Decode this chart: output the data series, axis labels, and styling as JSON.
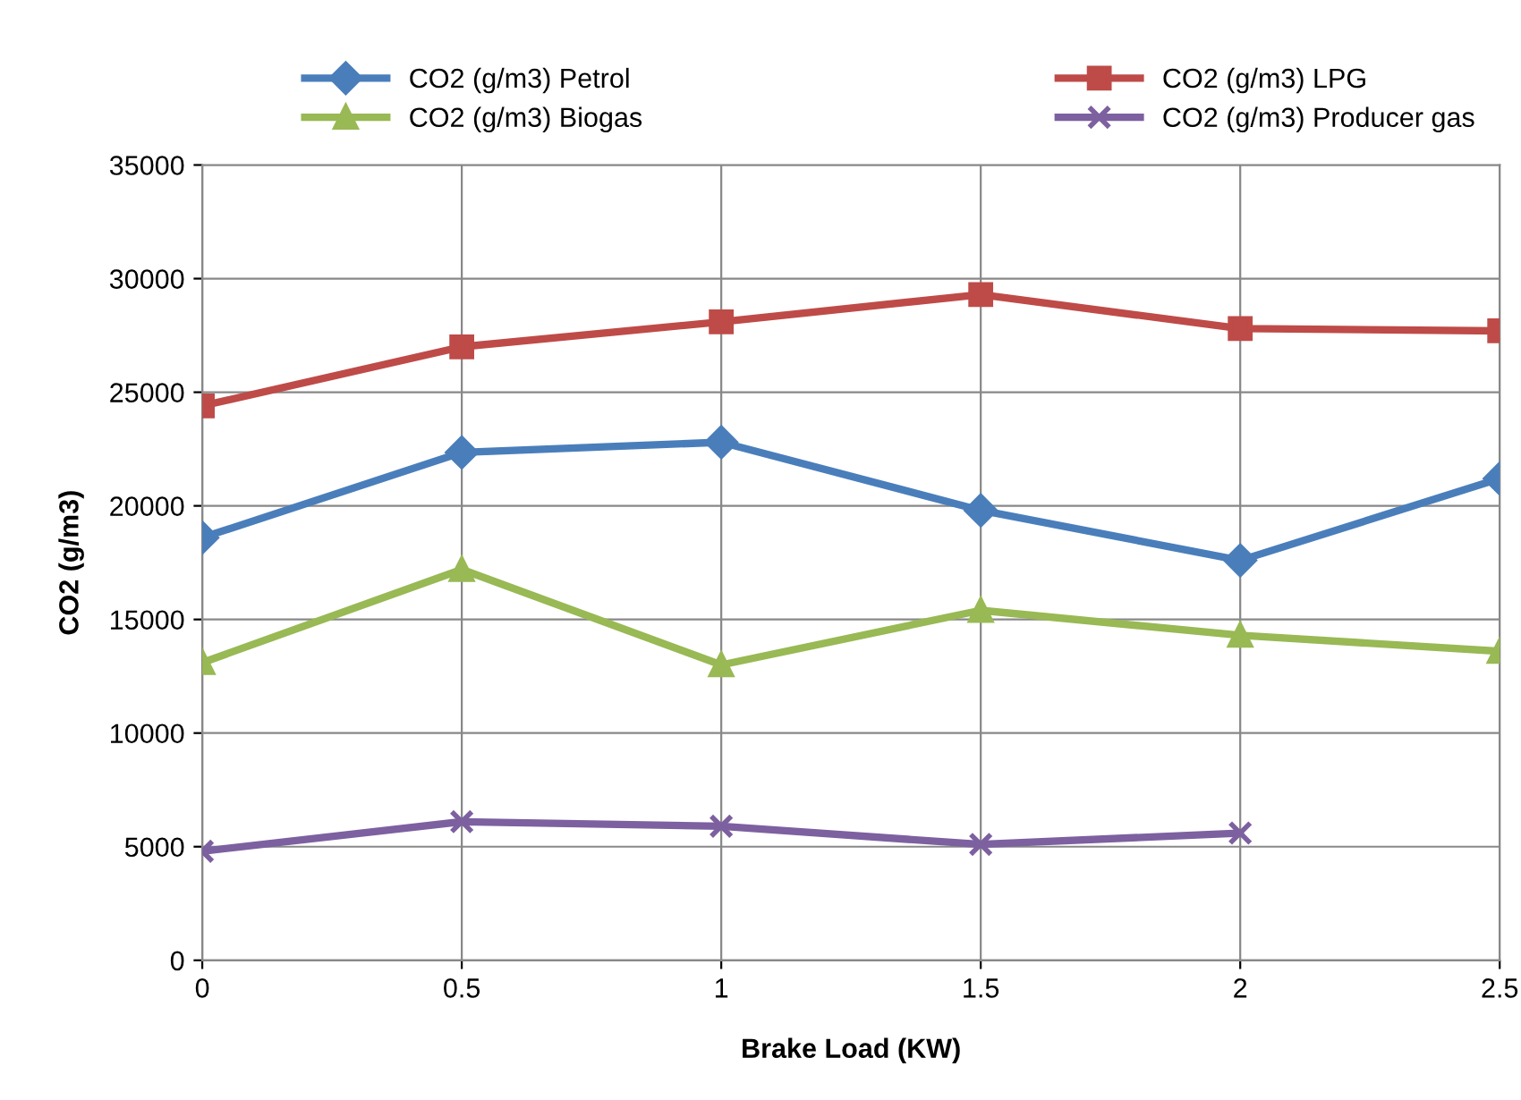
{
  "chart_data": {
    "type": "line",
    "xlabel": "Brake Load (KW)",
    "ylabel": "CO2 (g/m3)",
    "x": [
      0,
      0.5,
      1,
      1.5,
      2,
      2.5
    ],
    "series": [
      {
        "name": "CO2 (g/m3) Petrol",
        "color": "#4a7ebb",
        "marker": "diamond",
        "values": [
          18600,
          22350,
          22800,
          19800,
          17600,
          21200
        ]
      },
      {
        "name": "CO2 (g/m3) LPG",
        "color": "#be4b48",
        "marker": "square",
        "values": [
          24400,
          27000,
          28100,
          29300,
          27800,
          27700
        ]
      },
      {
        "name": "CO2 (g/m3) Biogas",
        "color": "#98b954",
        "marker": "triangle",
        "values": [
          13100,
          17200,
          13000,
          15400,
          14300,
          13600
        ]
      },
      {
        "name": "CO2 (g/m3) Producer gas",
        "color": "#7d60a0",
        "marker": "cross",
        "values": [
          4800,
          6100,
          5900,
          5100,
          5600,
          null
        ]
      }
    ],
    "xlim": [
      0,
      2.5
    ],
    "xticks": [
      0,
      0.5,
      1,
      1.5,
      2,
      2.5
    ],
    "ylim": [
      0,
      35000
    ],
    "yticks": [
      0,
      5000,
      10000,
      15000,
      20000,
      25000,
      30000,
      35000
    ],
    "grid": true,
    "legend": "top",
    "line_style": "solid"
  }
}
